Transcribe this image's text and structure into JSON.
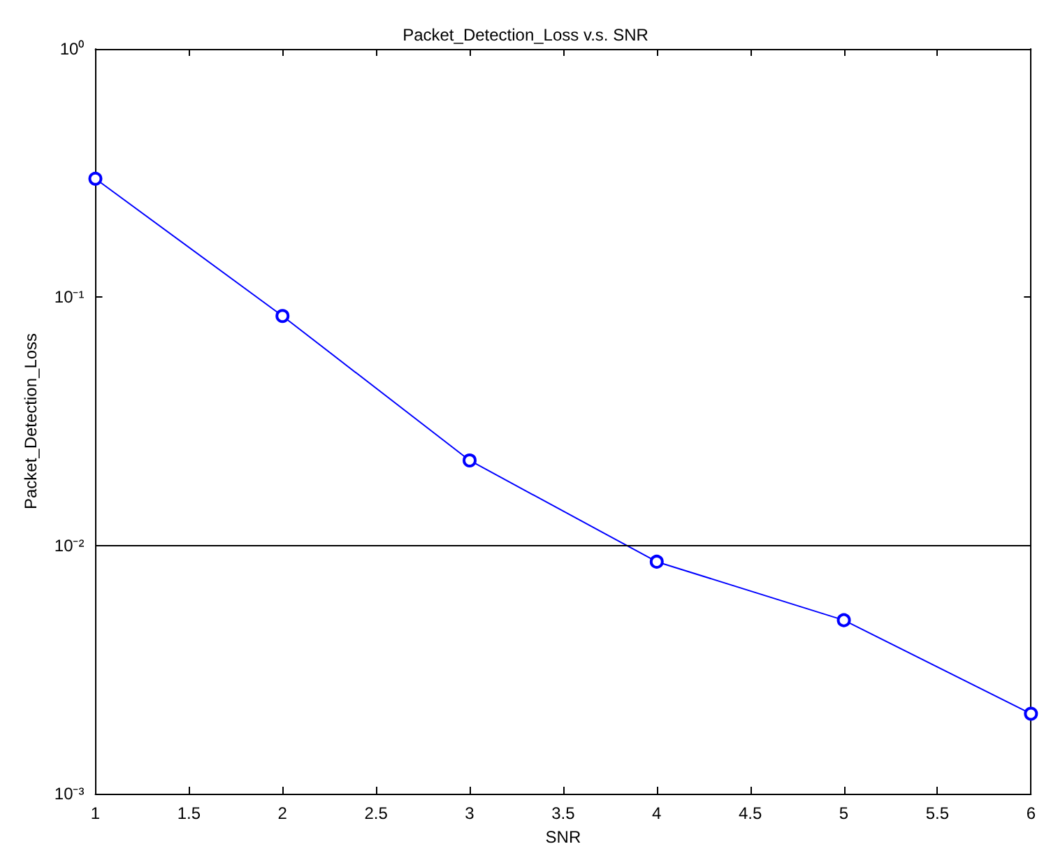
{
  "chart_data": {
    "type": "line",
    "title": "Packet_Detection_Loss v.s. SNR",
    "xlabel": "SNR",
    "ylabel": "Packet_Detection_Loss",
    "x": [
      1,
      2,
      3,
      4,
      5,
      6
    ],
    "series": [
      {
        "color": "#0000ff",
        "values": [
          0.3,
          0.084,
          0.022,
          0.0086,
          0.005,
          0.0021
        ]
      }
    ],
    "xlim": [
      1,
      6
    ],
    "xticks": [
      1,
      1.5,
      2,
      2.5,
      3,
      3.5,
      4,
      4.5,
      5,
      5.5,
      6
    ],
    "ylim": [
      0.001,
      1
    ],
    "yticks": [
      {
        "value": 0.001,
        "label": "10⁻³"
      },
      {
        "value": 0.01,
        "label": "10⁻²"
      },
      {
        "value": 0.1,
        "label": "10⁻¹"
      },
      {
        "value": 1,
        "label": "10⁰"
      }
    ],
    "log": "y",
    "grid": false,
    "marker": "circle",
    "line_style": "solid",
    "ref_lines": [
      {
        "axis": "y",
        "value": 0.01,
        "color": "#000000"
      }
    ]
  }
}
